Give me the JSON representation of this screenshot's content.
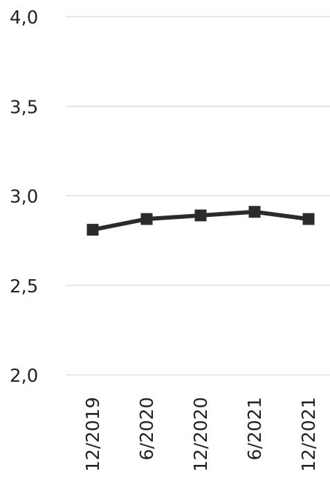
{
  "chart_data": {
    "type": "line",
    "categories": [
      "12/2019",
      "6/2020",
      "12/2020",
      "6/2021",
      "12/2021"
    ],
    "series": [
      {
        "values": [
          2.81,
          2.87,
          2.89,
          2.91,
          2.87
        ],
        "color": "#2b2b2b",
        "marker": "square"
      }
    ],
    "y_ticks": [
      "2,0",
      "2,5",
      "3,0",
      "3,5",
      "4,0"
    ],
    "ylim": [
      2.0,
      4.0
    ],
    "y_tick_step": 0.5,
    "grid": true,
    "x_tick_label_rotation": "vertical",
    "legend": "none",
    "title": "",
    "xlabel": "",
    "ylabel": ""
  }
}
